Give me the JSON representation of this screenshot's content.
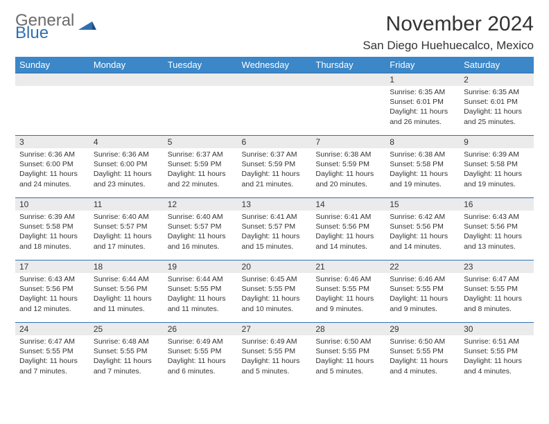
{
  "brand": {
    "line1": "General",
    "line2": "Blue"
  },
  "colors": {
    "header_bg": "#3b87c8",
    "header_text": "#ffffff",
    "row_border": "#2f6fb0",
    "daynum_bg": "#ebebeb",
    "logo_gray": "#6b6b6b",
    "logo_blue": "#2f6fb0",
    "page_bg": "#ffffff"
  },
  "title": {
    "month": "November 2024",
    "location": "San Diego Huehuecalco, Mexico"
  },
  "weekdays": [
    "Sunday",
    "Monday",
    "Tuesday",
    "Wednesday",
    "Thursday",
    "Friday",
    "Saturday"
  ],
  "weeks": [
    [
      {
        "empty": true
      },
      {
        "empty": true
      },
      {
        "empty": true
      },
      {
        "empty": true
      },
      {
        "empty": true
      },
      {
        "day": "1",
        "sunrise": "Sunrise: 6:35 AM",
        "sunset": "Sunset: 6:01 PM",
        "daylight": "Daylight: 11 hours and 26 minutes."
      },
      {
        "day": "2",
        "sunrise": "Sunrise: 6:35 AM",
        "sunset": "Sunset: 6:01 PM",
        "daylight": "Daylight: 11 hours and 25 minutes."
      }
    ],
    [
      {
        "day": "3",
        "sunrise": "Sunrise: 6:36 AM",
        "sunset": "Sunset: 6:00 PM",
        "daylight": "Daylight: 11 hours and 24 minutes."
      },
      {
        "day": "4",
        "sunrise": "Sunrise: 6:36 AM",
        "sunset": "Sunset: 6:00 PM",
        "daylight": "Daylight: 11 hours and 23 minutes."
      },
      {
        "day": "5",
        "sunrise": "Sunrise: 6:37 AM",
        "sunset": "Sunset: 5:59 PM",
        "daylight": "Daylight: 11 hours and 22 minutes."
      },
      {
        "day": "6",
        "sunrise": "Sunrise: 6:37 AM",
        "sunset": "Sunset: 5:59 PM",
        "daylight": "Daylight: 11 hours and 21 minutes."
      },
      {
        "day": "7",
        "sunrise": "Sunrise: 6:38 AM",
        "sunset": "Sunset: 5:59 PM",
        "daylight": "Daylight: 11 hours and 20 minutes."
      },
      {
        "day": "8",
        "sunrise": "Sunrise: 6:38 AM",
        "sunset": "Sunset: 5:58 PM",
        "daylight": "Daylight: 11 hours and 19 minutes."
      },
      {
        "day": "9",
        "sunrise": "Sunrise: 6:39 AM",
        "sunset": "Sunset: 5:58 PM",
        "daylight": "Daylight: 11 hours and 19 minutes."
      }
    ],
    [
      {
        "day": "10",
        "sunrise": "Sunrise: 6:39 AM",
        "sunset": "Sunset: 5:58 PM",
        "daylight": "Daylight: 11 hours and 18 minutes."
      },
      {
        "day": "11",
        "sunrise": "Sunrise: 6:40 AM",
        "sunset": "Sunset: 5:57 PM",
        "daylight": "Daylight: 11 hours and 17 minutes."
      },
      {
        "day": "12",
        "sunrise": "Sunrise: 6:40 AM",
        "sunset": "Sunset: 5:57 PM",
        "daylight": "Daylight: 11 hours and 16 minutes."
      },
      {
        "day": "13",
        "sunrise": "Sunrise: 6:41 AM",
        "sunset": "Sunset: 5:57 PM",
        "daylight": "Daylight: 11 hours and 15 minutes."
      },
      {
        "day": "14",
        "sunrise": "Sunrise: 6:41 AM",
        "sunset": "Sunset: 5:56 PM",
        "daylight": "Daylight: 11 hours and 14 minutes."
      },
      {
        "day": "15",
        "sunrise": "Sunrise: 6:42 AM",
        "sunset": "Sunset: 5:56 PM",
        "daylight": "Daylight: 11 hours and 14 minutes."
      },
      {
        "day": "16",
        "sunrise": "Sunrise: 6:43 AM",
        "sunset": "Sunset: 5:56 PM",
        "daylight": "Daylight: 11 hours and 13 minutes."
      }
    ],
    [
      {
        "day": "17",
        "sunrise": "Sunrise: 6:43 AM",
        "sunset": "Sunset: 5:56 PM",
        "daylight": "Daylight: 11 hours and 12 minutes."
      },
      {
        "day": "18",
        "sunrise": "Sunrise: 6:44 AM",
        "sunset": "Sunset: 5:56 PM",
        "daylight": "Daylight: 11 hours and 11 minutes."
      },
      {
        "day": "19",
        "sunrise": "Sunrise: 6:44 AM",
        "sunset": "Sunset: 5:55 PM",
        "daylight": "Daylight: 11 hours and 11 minutes."
      },
      {
        "day": "20",
        "sunrise": "Sunrise: 6:45 AM",
        "sunset": "Sunset: 5:55 PM",
        "daylight": "Daylight: 11 hours and 10 minutes."
      },
      {
        "day": "21",
        "sunrise": "Sunrise: 6:46 AM",
        "sunset": "Sunset: 5:55 PM",
        "daylight": "Daylight: 11 hours and 9 minutes."
      },
      {
        "day": "22",
        "sunrise": "Sunrise: 6:46 AM",
        "sunset": "Sunset: 5:55 PM",
        "daylight": "Daylight: 11 hours and 9 minutes."
      },
      {
        "day": "23",
        "sunrise": "Sunrise: 6:47 AM",
        "sunset": "Sunset: 5:55 PM",
        "daylight": "Daylight: 11 hours and 8 minutes."
      }
    ],
    [
      {
        "day": "24",
        "sunrise": "Sunrise: 6:47 AM",
        "sunset": "Sunset: 5:55 PM",
        "daylight": "Daylight: 11 hours and 7 minutes."
      },
      {
        "day": "25",
        "sunrise": "Sunrise: 6:48 AM",
        "sunset": "Sunset: 5:55 PM",
        "daylight": "Daylight: 11 hours and 7 minutes."
      },
      {
        "day": "26",
        "sunrise": "Sunrise: 6:49 AM",
        "sunset": "Sunset: 5:55 PM",
        "daylight": "Daylight: 11 hours and 6 minutes."
      },
      {
        "day": "27",
        "sunrise": "Sunrise: 6:49 AM",
        "sunset": "Sunset: 5:55 PM",
        "daylight": "Daylight: 11 hours and 5 minutes."
      },
      {
        "day": "28",
        "sunrise": "Sunrise: 6:50 AM",
        "sunset": "Sunset: 5:55 PM",
        "daylight": "Daylight: 11 hours and 5 minutes."
      },
      {
        "day": "29",
        "sunrise": "Sunrise: 6:50 AM",
        "sunset": "Sunset: 5:55 PM",
        "daylight": "Daylight: 11 hours and 4 minutes."
      },
      {
        "day": "30",
        "sunrise": "Sunrise: 6:51 AM",
        "sunset": "Sunset: 5:55 PM",
        "daylight": "Daylight: 11 hours and 4 minutes."
      }
    ]
  ]
}
